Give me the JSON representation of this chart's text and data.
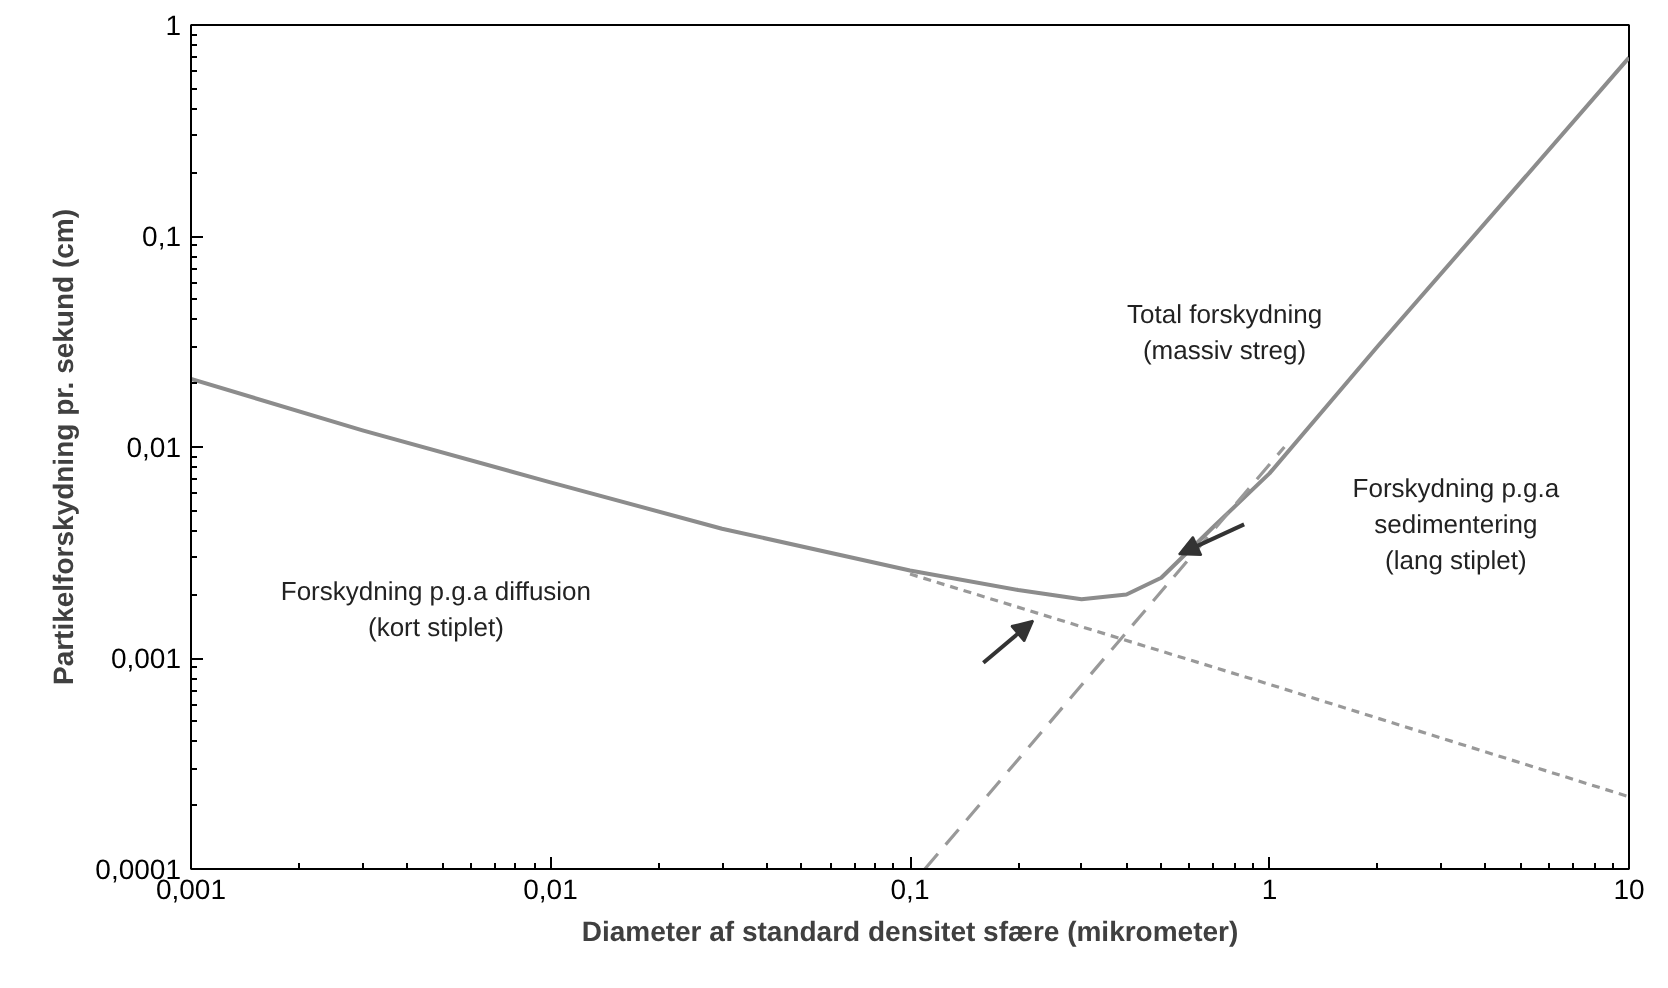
{
  "chart_data": {
    "type": "line",
    "xlabel": "Diameter af standard densitet sfære (mikrometer)",
    "ylabel": "Partikelforskydning pr. sekund (cm)",
    "log": "xy",
    "xlim": [
      0.001,
      10
    ],
    "ylim": [
      0.0001,
      1
    ],
    "xticks": [
      {
        "value": 0.001,
        "label": "0,001"
      },
      {
        "value": 0.01,
        "label": "0,01"
      },
      {
        "value": 0.1,
        "label": "0,1"
      },
      1,
      10
    ],
    "yticks": [
      {
        "value": 0.0001,
        "label": "0,0001"
      },
      {
        "value": 0.001,
        "label": "0,001"
      },
      {
        "value": 0.01,
        "label": "0,01"
      },
      {
        "value": 0.1,
        "label": "0,1"
      },
      1
    ],
    "grid": false,
    "series": [
      {
        "color": "#8c8c8c",
        "line_style": "solid",
        "x": [
          0.001,
          0.003,
          0.01,
          0.03,
          0.1,
          0.2,
          0.3,
          0.4,
          0.5,
          0.7,
          1,
          2,
          5,
          10
        ],
        "values": [
          0.021,
          0.012,
          0.0068,
          0.0041,
          0.0026,
          0.0021,
          0.0019,
          0.002,
          0.0024,
          0.0042,
          0.0075,
          0.03,
          0.18,
          0.7
        ]
      },
      {
        "color": "#999999",
        "line_style": "dotted",
        "x": [
          0.1,
          1,
          10
        ],
        "values": [
          0.0025,
          0.00075,
          0.00022
        ]
      },
      {
        "color": "#999999",
        "line_style": "dashed",
        "x": [
          0.11,
          1.1
        ],
        "values": [
          0.0001,
          0.01
        ]
      }
    ],
    "annotations": [
      "Total forskydning\n(massiv streg)",
      "Forskydning p.g.a diffusion\n(kort stiplet)",
      "Forskydning p.g.a\nsedimentering\n(lang stiplet)"
    ]
  }
}
